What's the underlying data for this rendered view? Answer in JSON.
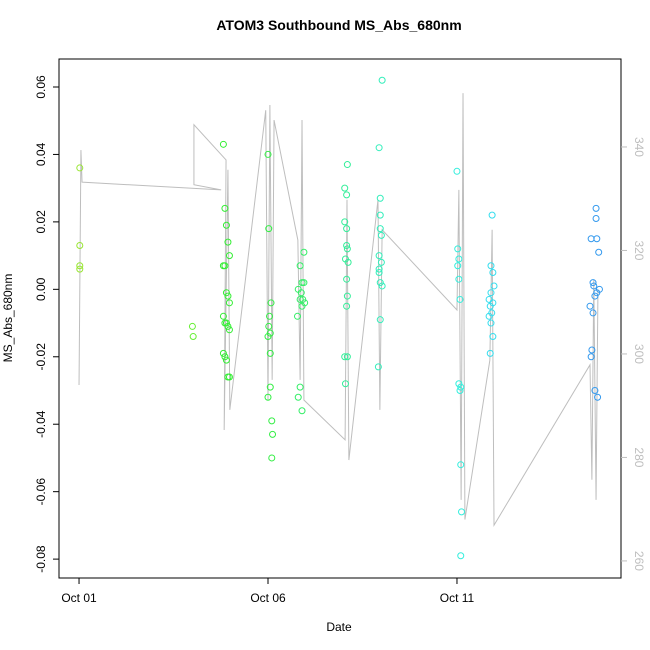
{
  "chart_data": {
    "type": "scatter",
    "title": "ATOM3 Southbound MS_Abs_680nm",
    "x_label": "Date",
    "y_label": "MS_Abs_680nm",
    "xlim": [
      -0.53,
      14.34
    ],
    "xticks": [
      {
        "value": 0,
        "label": "Oct 01"
      },
      {
        "value": 5,
        "label": "Oct 06"
      },
      {
        "value": 10,
        "label": "Oct 11"
      }
    ],
    "ylim": [
      -0.0856,
      0.0683
    ],
    "yticks": [
      -0.08,
      -0.06,
      -0.04,
      -0.02,
      {
        "value": 0,
        "label": "0.00"
      },
      0.02,
      0.04,
      0.06
    ],
    "y2lim": [
      256.7,
      357.0
    ],
    "y2ticks": [
      260,
      280,
      300,
      320,
      340
    ],
    "y2_color": "#bebebe",
    "series": [
      {
        "color": "#99e633",
        "x": [
          0.02,
          0.02,
          0.02,
          0.02
        ],
        "values": [
          0.036,
          0.013,
          0.007,
          0.006
        ]
      },
      {
        "color": "#66ee33",
        "x": [
          3.0,
          3.02
        ],
        "values": [
          -0.011,
          -0.014
        ]
      },
      {
        "color": "#33ee33",
        "x": [
          3.82,
          3.86,
          3.9,
          3.94,
          3.98,
          3.82,
          3.86,
          3.9,
          3.94,
          3.98,
          3.82,
          3.86,
          3.9,
          3.94,
          3.98,
          3.82,
          3.86,
          3.9,
          3.94,
          3.98
        ],
        "values": [
          0.043,
          0.024,
          0.019,
          0.014,
          0.01,
          0.007,
          0.007,
          -0.001,
          -0.002,
          -0.004,
          -0.008,
          -0.01,
          -0.01,
          -0.011,
          -0.012,
          -0.019,
          -0.02,
          -0.021,
          -0.026,
          -0.026
        ]
      },
      {
        "color": "#33ee44",
        "x": [
          5.0,
          5.02,
          5.08,
          5.04,
          5.02,
          5.06,
          5.0,
          5.06,
          5.06,
          5.0,
          5.1,
          5.12,
          5.1
        ],
        "values": [
          0.04,
          0.018,
          -0.004,
          -0.008,
          -0.011,
          -0.013,
          -0.014,
          -0.019,
          -0.029,
          -0.032,
          -0.039,
          -0.043,
          -0.05
        ]
      },
      {
        "color": "#33ee66",
        "x": [
          5.95,
          5.85,
          5.9,
          5.95,
          5.8,
          5.88,
          5.85,
          5.92,
          5.97,
          5.9,
          5.78,
          5.85,
          5.8,
          5.9
        ],
        "values": [
          0.011,
          0.007,
          0.002,
          0.002,
          0.0,
          -0.001,
          -0.003,
          -0.003,
          -0.004,
          -0.005,
          -0.008,
          -0.029,
          -0.032,
          -0.036
        ]
      },
      {
        "color": "#33ee99",
        "x": [
          7.1,
          7.03,
          7.08,
          7.03,
          7.08,
          7.08,
          7.1,
          7.05,
          7.12,
          7.08,
          7.1,
          7.08,
          7.03,
          7.1,
          7.05
        ],
        "values": [
          0.037,
          0.03,
          0.028,
          0.02,
          0.018,
          0.013,
          0.012,
          0.009,
          0.008,
          0.003,
          -0.002,
          -0.005,
          -0.02,
          -0.02,
          -0.028
        ]
      },
      {
        "color": "#33eebb",
        "x": [
          8.02,
          7.94,
          7.97,
          7.97,
          7.97,
          8.0,
          7.94,
          8.0,
          7.94,
          7.94,
          7.97,
          8.02,
          7.97,
          7.92
        ],
        "values": [
          0.062,
          0.042,
          0.027,
          0.022,
          0.018,
          0.016,
          0.01,
          0.008,
          0.006,
          0.005,
          0.002,
          0.001,
          -0.009,
          -0.023
        ]
      },
      {
        "color": "#33eedd",
        "x": [
          10.0,
          10.02,
          10.05,
          10.02,
          10.05,
          10.08,
          10.05,
          10.1,
          10.08,
          10.1,
          10.12,
          10.1
        ],
        "values": [
          0.035,
          0.012,
          0.009,
          0.007,
          0.003,
          -0.003,
          -0.028,
          -0.029,
          -0.03,
          -0.052,
          -0.066,
          -0.079
        ]
      },
      {
        "color": "#33ddee",
        "x": [
          10.93,
          10.9,
          10.95,
          10.98,
          10.9,
          10.85,
          10.95,
          10.88,
          10.92,
          10.85,
          10.9,
          10.95,
          10.88
        ],
        "values": [
          0.022,
          0.007,
          0.005,
          0.001,
          -0.001,
          -0.003,
          -0.004,
          -0.005,
          -0.007,
          -0.008,
          -0.01,
          -0.014,
          -0.019
        ]
      },
      {
        "color": "#3399ee",
        "x": [
          13.68,
          13.68,
          13.55,
          13.7,
          13.75,
          13.6,
          13.62,
          13.77,
          13.7,
          13.65,
          13.52,
          13.6,
          13.57,
          13.55,
          13.65,
          13.72
        ],
        "values": [
          0.024,
          0.021,
          0.015,
          0.015,
          0.011,
          0.002,
          0.001,
          0.0,
          -0.001,
          -0.002,
          -0.005,
          -0.007,
          -0.018,
          -0.02,
          -0.03,
          -0.032
        ]
      },
      {
        "color": "#bebebe",
        "axis": "y2",
        "x": [
          0,
          0.05,
          0.08,
          3.76,
          3.04,
          3.04,
          3.89,
          3.84,
          3.94,
          3.99,
          4.94,
          5.0,
          5.05,
          5.11,
          5.16,
          5.79,
          5.85,
          5.9,
          5.95,
          7.04,
          7.09,
          7.14,
          7.91,
          7.96,
          8.02,
          10.0,
          10.05,
          10.11,
          10.16,
          10.21,
          10.87,
          10.93,
          10.98,
          13.52,
          13.57,
          13.62,
          13.68,
          13.73
        ],
        "values": [
          294,
          339.4,
          333.2,
          331.7,
          332.7,
          344.3,
          337.5,
          285.3,
          335.6,
          289.2,
          347.1,
          291.1,
          348.1,
          295.0,
          345.2,
          322.0,
          295.0,
          345.2,
          291.1,
          283.4,
          329.8,
          279.5,
          329.8,
          289.2,
          324.0,
          308.5,
          331.7,
          271.8,
          350.4,
          268.0,
          298.8,
          324.0,
          266.9,
          297.9,
          275.7,
          314.3,
          271.8,
          312.4
        ]
      }
    ]
  }
}
